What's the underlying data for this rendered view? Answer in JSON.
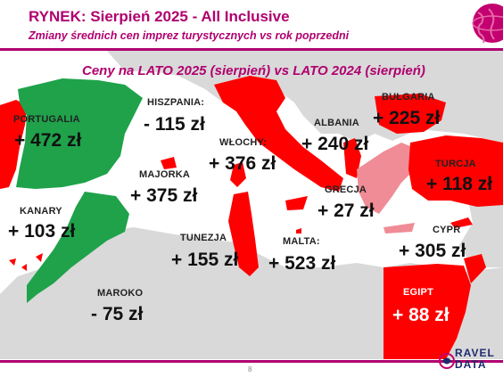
{
  "header": {
    "title": "RYNEK: Sierpień 2025 - All Inclusive",
    "subtitle": "Zmiany średnich cen imprez turystycznych vs rok poprzedni"
  },
  "map_caption": "Ceny na LATO 2025 (sierpień) vs  LATO 2024 (sierpień)",
  "colors": {
    "accent": "#b0006e",
    "increase": "#ff0000",
    "decrease": "#1fa24a",
    "greece": "#f08c96",
    "land": "#d9d9d9",
    "sea": "#ffffff"
  },
  "destinations": [
    {
      "name": "PORTUGALIA",
      "change": "+ 472 zł",
      "trend": "increase"
    },
    {
      "name": "HISZPANIA:",
      "change": "- 115 zł",
      "trend": "decrease"
    },
    {
      "name": "MAJORKA",
      "change": "+ 375 zł",
      "trend": "increase"
    },
    {
      "name": "KANARY",
      "change": "+ 103 zł",
      "trend": "increase"
    },
    {
      "name": "MAROKO",
      "change": "- 75 zł",
      "trend": "decrease"
    },
    {
      "name": "TUNEZJA",
      "change": "+ 155 zł",
      "trend": "increase"
    },
    {
      "name": "WŁOCHY:",
      "change": "+ 376 zł",
      "trend": "increase"
    },
    {
      "name": "MALTA:",
      "change": "+ 523 zł",
      "trend": "increase"
    },
    {
      "name": "ALBANIA",
      "change": "+ 240 zł",
      "trend": "increase"
    },
    {
      "name": "GRECJA",
      "change": "+ 27 zł",
      "trend": "increase"
    },
    {
      "name": "BUŁGARIA",
      "change": "+ 225 zł",
      "trend": "increase"
    },
    {
      "name": "TURCJA",
      "change": "+ 118 zł",
      "trend": "increase"
    },
    {
      "name": "CYPR",
      "change": "+ 305 zł",
      "trend": "increase"
    },
    {
      "name": "EGIPT",
      "change": "+ 88 zł",
      "trend": "increase"
    }
  ],
  "footer": {
    "page_number": "8",
    "logo_top": "RAVEL",
    "logo_bottom": "DATA"
  }
}
